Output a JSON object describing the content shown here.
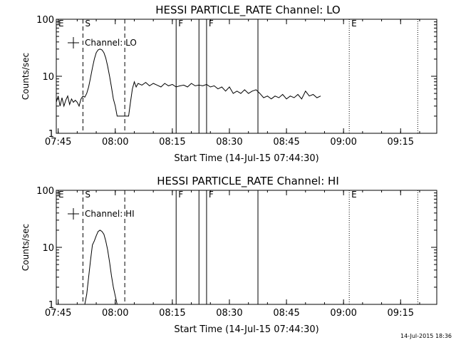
{
  "footer": {
    "timestamp": "14-Jul-2015 18:36"
  },
  "chart_data": [
    {
      "type": "line",
      "title": "HESSI PARTICLE_RATE Channel: LO",
      "xlabel": "Start Time (14-Jul-15 07:44:30)",
      "ylabel": "Counts/sec",
      "y_scale": "log",
      "xlim": [
        "07:44:30",
        "09:24:30"
      ],
      "ylim": [
        1,
        100
      ],
      "x_ticks": [
        "07:45",
        "08:00",
        "08:15",
        "08:30",
        "08:45",
        "09:00",
        "09:15"
      ],
      "y_ticks": [
        "1",
        "10",
        "100"
      ],
      "legend": {
        "label": "Channel: LO",
        "position": "top-left"
      },
      "markers": [
        {
          "label": "E",
          "time": "07:44:30",
          "style": "dotted"
        },
        {
          "label": "S",
          "time": "07:51:30",
          "style": "dashed"
        },
        {
          "label": "",
          "time": "08:02:30",
          "style": "dashed"
        },
        {
          "label": "F",
          "time": "08:16:00",
          "style": "solid"
        },
        {
          "label": "",
          "time": "08:22:00",
          "style": "solid"
        },
        {
          "label": "F",
          "time": "08:24:00",
          "style": "solid"
        },
        {
          "label": "",
          "time": "08:37:30",
          "style": "solid"
        },
        {
          "label": "E",
          "time": "09:01:30",
          "style": "dotted"
        },
        {
          "label": "",
          "time": "09:19:30",
          "style": "dotted"
        }
      ],
      "series": [
        {
          "x": [
            "07:44:30",
            "07:45:00",
            "07:45:30",
            "07:46:00",
            "07:46:30",
            "07:47:00",
            "07:47:30",
            "07:48:00",
            "07:48:30",
            "07:49:00",
            "07:49:30",
            "07:50:00",
            "07:50:30",
            "07:51:00",
            "07:51:30",
            "07:52:00",
            "07:52:30",
            "07:53:00",
            "07:53:30",
            "07:54:00",
            "07:54:30",
            "07:55:00",
            "07:55:30",
            "07:56:00",
            "07:56:30",
            "07:57:00",
            "07:57:30",
            "07:58:00",
            "07:58:30",
            "07:59:00",
            "07:59:30",
            "08:00:00",
            "08:00:30",
            "08:01:00",
            "08:01:30",
            "08:02:00",
            "08:02:30",
            "08:03:00",
            "08:03:30",
            "08:04:00",
            "08:04:30",
            "08:05:00",
            "08:05:30",
            "08:06:00",
            "08:07:00",
            "08:08:00",
            "08:09:00",
            "08:10:00",
            "08:11:00",
            "08:12:00",
            "08:13:00",
            "08:14:00",
            "08:15:00",
            "08:16:00",
            "08:17:00",
            "08:18:00",
            "08:19:00",
            "08:20:00",
            "08:21:00",
            "08:22:00",
            "08:23:00",
            "08:24:00",
            "08:25:00",
            "08:26:00",
            "08:27:00",
            "08:28:00",
            "08:29:00",
            "08:30:00",
            "08:31:00",
            "08:32:00",
            "08:33:00",
            "08:34:00",
            "08:35:00",
            "08:36:00",
            "08:37:00",
            "08:38:00",
            "08:39:00",
            "08:40:00",
            "08:41:00",
            "08:42:00",
            "08:43:00",
            "08:44:00",
            "08:45:00",
            "08:46:00",
            "08:47:00",
            "08:48:00",
            "08:49:00",
            "08:50:00",
            "08:51:00",
            "08:52:00",
            "08:53:00",
            "08:54:00"
          ],
          "y": [
            3.5,
            4.5,
            3.0,
            4.2,
            3.0,
            3.8,
            4.5,
            3.2,
            4.0,
            3.5,
            3.8,
            3.5,
            3.0,
            4.0,
            4.5,
            4.3,
            5.0,
            6.5,
            9.5,
            14,
            20,
            26,
            29,
            30,
            29,
            26,
            21,
            15,
            10,
            6.5,
            4.0,
            3.0,
            2.0,
            2.0,
            2.0,
            2.0,
            2.0,
            2.0,
            2.0,
            3.5,
            6.0,
            8.0,
            6.5,
            7.5,
            7.0,
            7.8,
            6.8,
            7.5,
            7.0,
            6.5,
            7.5,
            6.8,
            7.2,
            6.5,
            6.8,
            7.0,
            6.5,
            7.5,
            6.8,
            7.0,
            6.8,
            7.2,
            6.5,
            6.8,
            6.0,
            6.5,
            5.5,
            6.5,
            5.0,
            5.5,
            5.0,
            5.8,
            5.0,
            5.5,
            5.8,
            5.0,
            4.2,
            4.5,
            4.0,
            4.5,
            4.2,
            4.8,
            4.0,
            4.5,
            4.2,
            4.8,
            4.0,
            5.5,
            4.5,
            4.8,
            4.2,
            4.5
          ]
        }
      ]
    },
    {
      "type": "line",
      "title": "HESSI PARTICLE_RATE Channel: HI",
      "xlabel": "Start Time (14-Jul-15 07:44:30)",
      "ylabel": "Counts/sec",
      "y_scale": "log",
      "xlim": [
        "07:44:30",
        "09:24:30"
      ],
      "ylim": [
        1,
        100
      ],
      "x_ticks": [
        "07:45",
        "08:00",
        "08:15",
        "08:30",
        "08:45",
        "09:00",
        "09:15"
      ],
      "y_ticks": [
        "1",
        "10",
        "100"
      ],
      "legend": {
        "label": "Channel: HI",
        "position": "top-left"
      },
      "markers": [
        {
          "label": "E",
          "time": "07:44:30",
          "style": "dotted"
        },
        {
          "label": "S",
          "time": "07:51:30",
          "style": "dashed"
        },
        {
          "label": "",
          "time": "08:02:30",
          "style": "dashed"
        },
        {
          "label": "F",
          "time": "08:16:00",
          "style": "solid"
        },
        {
          "label": "",
          "time": "08:22:00",
          "style": "solid"
        },
        {
          "label": "F",
          "time": "08:24:00",
          "style": "solid"
        },
        {
          "label": "",
          "time": "08:37:30",
          "style": "solid"
        },
        {
          "label": "E",
          "time": "09:01:30",
          "style": "dotted"
        },
        {
          "label": "",
          "time": "09:19:30",
          "style": "dotted"
        }
      ],
      "series": [
        {
          "x": [
            "07:52:00",
            "07:52:30",
            "07:53:00",
            "07:53:30",
            "07:54:00",
            "07:54:30",
            "07:55:00",
            "07:55:30",
            "07:56:00",
            "07:56:30",
            "07:57:00",
            "07:57:30",
            "07:58:00",
            "07:58:30",
            "07:59:00",
            "07:59:30",
            "08:00:00",
            "08:00:30"
          ],
          "y": [
            1.0,
            1.5,
            3.0,
            6.0,
            11,
            13,
            16,
            19,
            20,
            19,
            17,
            13,
            9,
            5.5,
            3.2,
            2.0,
            1.4,
            1.0
          ]
        }
      ]
    }
  ]
}
